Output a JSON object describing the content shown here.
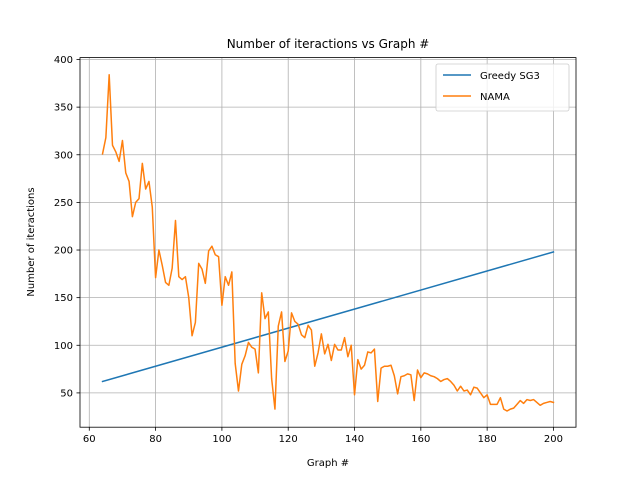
{
  "chart_data": {
    "type": "line",
    "title": "Number of iteractions vs Graph #",
    "xlabel": "Graph #",
    "ylabel": "Number of iteractions",
    "xlim": [
      57.2,
      206.8
    ],
    "ylim": [
      14,
      402
    ],
    "xticks": [
      60,
      80,
      100,
      120,
      140,
      160,
      180,
      200
    ],
    "yticks": [
      50,
      100,
      150,
      200,
      250,
      300,
      350,
      400
    ],
    "grid": true,
    "legend": "top-right",
    "series": [
      {
        "name": "Greedy SG3",
        "color": "#1f77b4",
        "x": [
          64,
          200
        ],
        "y": [
          62,
          198
        ]
      },
      {
        "name": "NAMA",
        "color": "#ff7f0e",
        "x": [
          64,
          65,
          66,
          67,
          68,
          69,
          70,
          71,
          72,
          73,
          74,
          75,
          76,
          77,
          78,
          79,
          80,
          81,
          82,
          83,
          84,
          85,
          86,
          87,
          88,
          89,
          90,
          91,
          92,
          93,
          94,
          95,
          96,
          97,
          98,
          99,
          100,
          101,
          102,
          103,
          104,
          105,
          106,
          107,
          108,
          109,
          110,
          111,
          112,
          113,
          114,
          115,
          116,
          117,
          118,
          119,
          120,
          121,
          122,
          123,
          124,
          125,
          126,
          127,
          128,
          129,
          130,
          131,
          132,
          133,
          134,
          135,
          136,
          137,
          138,
          139,
          140,
          141,
          142,
          143,
          144,
          145,
          146,
          147,
          148,
          149,
          150,
          151,
          152,
          153,
          154,
          155,
          156,
          157,
          158,
          159,
          160,
          161,
          162,
          163,
          164,
          165,
          166,
          167,
          168,
          169,
          170,
          171,
          172,
          173,
          174,
          175,
          176,
          177,
          178,
          179,
          180,
          181,
          182,
          183,
          184,
          185,
          186,
          187,
          188,
          189,
          190,
          191,
          192,
          193,
          194,
          195,
          196,
          197,
          198,
          199,
          200
        ],
        "y": [
          301,
          318,
          384,
          310,
          303,
          293,
          315,
          281,
          272,
          235,
          250,
          254,
          291,
          264,
          272,
          245,
          171,
          200,
          184,
          166,
          163,
          181,
          231,
          172,
          169,
          172,
          150,
          110,
          124,
          186,
          180,
          165,
          199,
          204,
          195,
          193,
          142,
          172,
          163,
          177,
          81,
          52,
          80,
          89,
          103,
          98,
          96,
          71,
          155,
          128,
          135,
          65,
          33,
          120,
          135,
          83,
          94,
          134,
          125,
          122,
          111,
          108,
          121,
          116,
          78,
          92,
          112,
          91,
          101,
          84,
          101,
          95,
          95,
          108,
          88,
          100,
          48,
          85,
          75,
          79,
          93,
          92,
          96,
          41,
          76,
          78,
          78,
          79,
          68,
          49,
          67,
          68,
          70,
          69,
          42,
          74,
          66,
          71,
          70,
          68,
          67,
          65,
          62,
          64,
          65,
          62,
          58,
          52,
          57,
          52,
          53,
          48,
          56,
          55,
          50,
          45,
          48,
          38,
          38,
          38,
          45,
          33,
          31,
          33,
          34,
          38,
          42,
          39,
          43,
          42,
          43,
          40,
          37,
          39,
          40,
          41,
          40
        ]
      }
    ]
  }
}
